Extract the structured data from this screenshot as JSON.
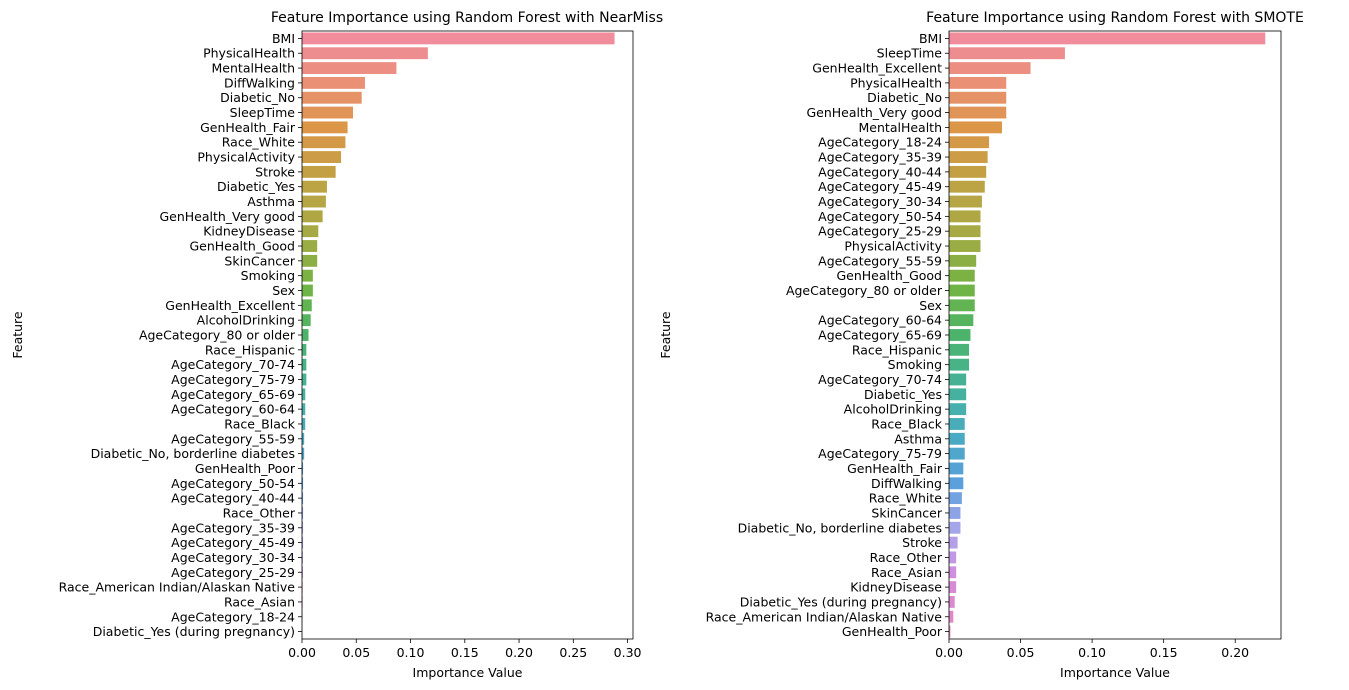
{
  "chart_data": [
    {
      "type": "bar",
      "orientation": "horizontal",
      "title": "Feature Importance using Random Forest with NearMiss",
      "xlabel": "Importance Value",
      "ylabel": "Feature",
      "xlim": [
        0,
        0.305
      ],
      "xticks": [
        0.0,
        0.05,
        0.1,
        0.15,
        0.2,
        0.25,
        0.3
      ],
      "xtick_labels": [
        "0.00",
        "0.05",
        "0.10",
        "0.15",
        "0.20",
        "0.25",
        "0.30"
      ],
      "grid": false,
      "palette": "husl",
      "categories": [
        "BMI",
        "PhysicalHealth",
        "MentalHealth",
        "DiffWalking",
        "Diabetic_No",
        "SleepTime",
        "GenHealth_Fair",
        "Race_White",
        "PhysicalActivity",
        "Stroke",
        "Diabetic_Yes",
        "Asthma",
        "GenHealth_Very good",
        "KidneyDisease",
        "GenHealth_Good",
        "SkinCancer",
        "Smoking",
        "Sex",
        "GenHealth_Excellent",
        "AlcoholDrinking",
        "AgeCategory_80 or older",
        "Race_Hispanic",
        "AgeCategory_70-74",
        "AgeCategory_75-79",
        "AgeCategory_65-69",
        "AgeCategory_60-64",
        "Race_Black",
        "AgeCategory_55-59",
        "Diabetic_No, borderline diabetes",
        "GenHealth_Poor",
        "AgeCategory_50-54",
        "AgeCategory_40-44",
        "Race_Other",
        "AgeCategory_35-39",
        "AgeCategory_45-49",
        "AgeCategory_30-34",
        "AgeCategory_25-29",
        "Race_American Indian/Alaskan Native",
        "Race_Asian",
        "AgeCategory_18-24",
        "Diabetic_Yes (during pregnancy)"
      ],
      "values": [
        0.288,
        0.116,
        0.087,
        0.058,
        0.055,
        0.047,
        0.042,
        0.04,
        0.036,
        0.031,
        0.023,
        0.022,
        0.019,
        0.015,
        0.014,
        0.014,
        0.01,
        0.01,
        0.009,
        0.008,
        0.006,
        0.004,
        0.004,
        0.004,
        0.003,
        0.003,
        0.003,
        0.002,
        0.002,
        0.001,
        0.001,
        0.001,
        0.001,
        0.001,
        0.001,
        0.0008,
        0.0008,
        0.0006,
        0.0006,
        0.0005,
        0.0003
      ]
    },
    {
      "type": "bar",
      "orientation": "horizontal",
      "title": "Feature Importance using Random Forest with SMOTE",
      "xlabel": "Importance Value",
      "ylabel": "Feature",
      "xlim": [
        0,
        0.232
      ],
      "xticks": [
        0.0,
        0.05,
        0.1,
        0.15,
        0.2
      ],
      "xtick_labels": [
        "0.00",
        "0.05",
        "0.10",
        "0.15",
        "0.20"
      ],
      "grid": false,
      "palette": "husl",
      "categories": [
        "BMI",
        "SleepTime",
        "GenHealth_Excellent",
        "PhysicalHealth",
        "Diabetic_No",
        "GenHealth_Very good",
        "MentalHealth",
        "AgeCategory_18-24",
        "AgeCategory_35-39",
        "AgeCategory_40-44",
        "AgeCategory_45-49",
        "AgeCategory_30-34",
        "AgeCategory_50-54",
        "AgeCategory_25-29",
        "PhysicalActivity",
        "AgeCategory_55-59",
        "GenHealth_Good",
        "AgeCategory_80 or older",
        "Sex",
        "AgeCategory_60-64",
        "AgeCategory_65-69",
        "Race_Hispanic",
        "Smoking",
        "AgeCategory_70-74",
        "Diabetic_Yes",
        "AlcoholDrinking",
        "Race_Black",
        "Asthma",
        "AgeCategory_75-79",
        "GenHealth_Fair",
        "DiffWalking",
        "Race_White",
        "SkinCancer",
        "Diabetic_No, borderline diabetes",
        "Stroke",
        "Race_Other",
        "Race_Asian",
        "KidneyDisease",
        "Diabetic_Yes (during pregnancy)",
        "Race_American Indian/Alaskan Native",
        "GenHealth_Poor"
      ],
      "values": [
        0.221,
        0.081,
        0.057,
        0.04,
        0.04,
        0.04,
        0.037,
        0.028,
        0.027,
        0.026,
        0.025,
        0.023,
        0.022,
        0.022,
        0.022,
        0.019,
        0.018,
        0.018,
        0.018,
        0.017,
        0.015,
        0.014,
        0.014,
        0.012,
        0.012,
        0.012,
        0.011,
        0.011,
        0.011,
        0.01,
        0.01,
        0.009,
        0.008,
        0.008,
        0.006,
        0.005,
        0.005,
        0.005,
        0.004,
        0.003,
        0.001
      ]
    }
  ]
}
